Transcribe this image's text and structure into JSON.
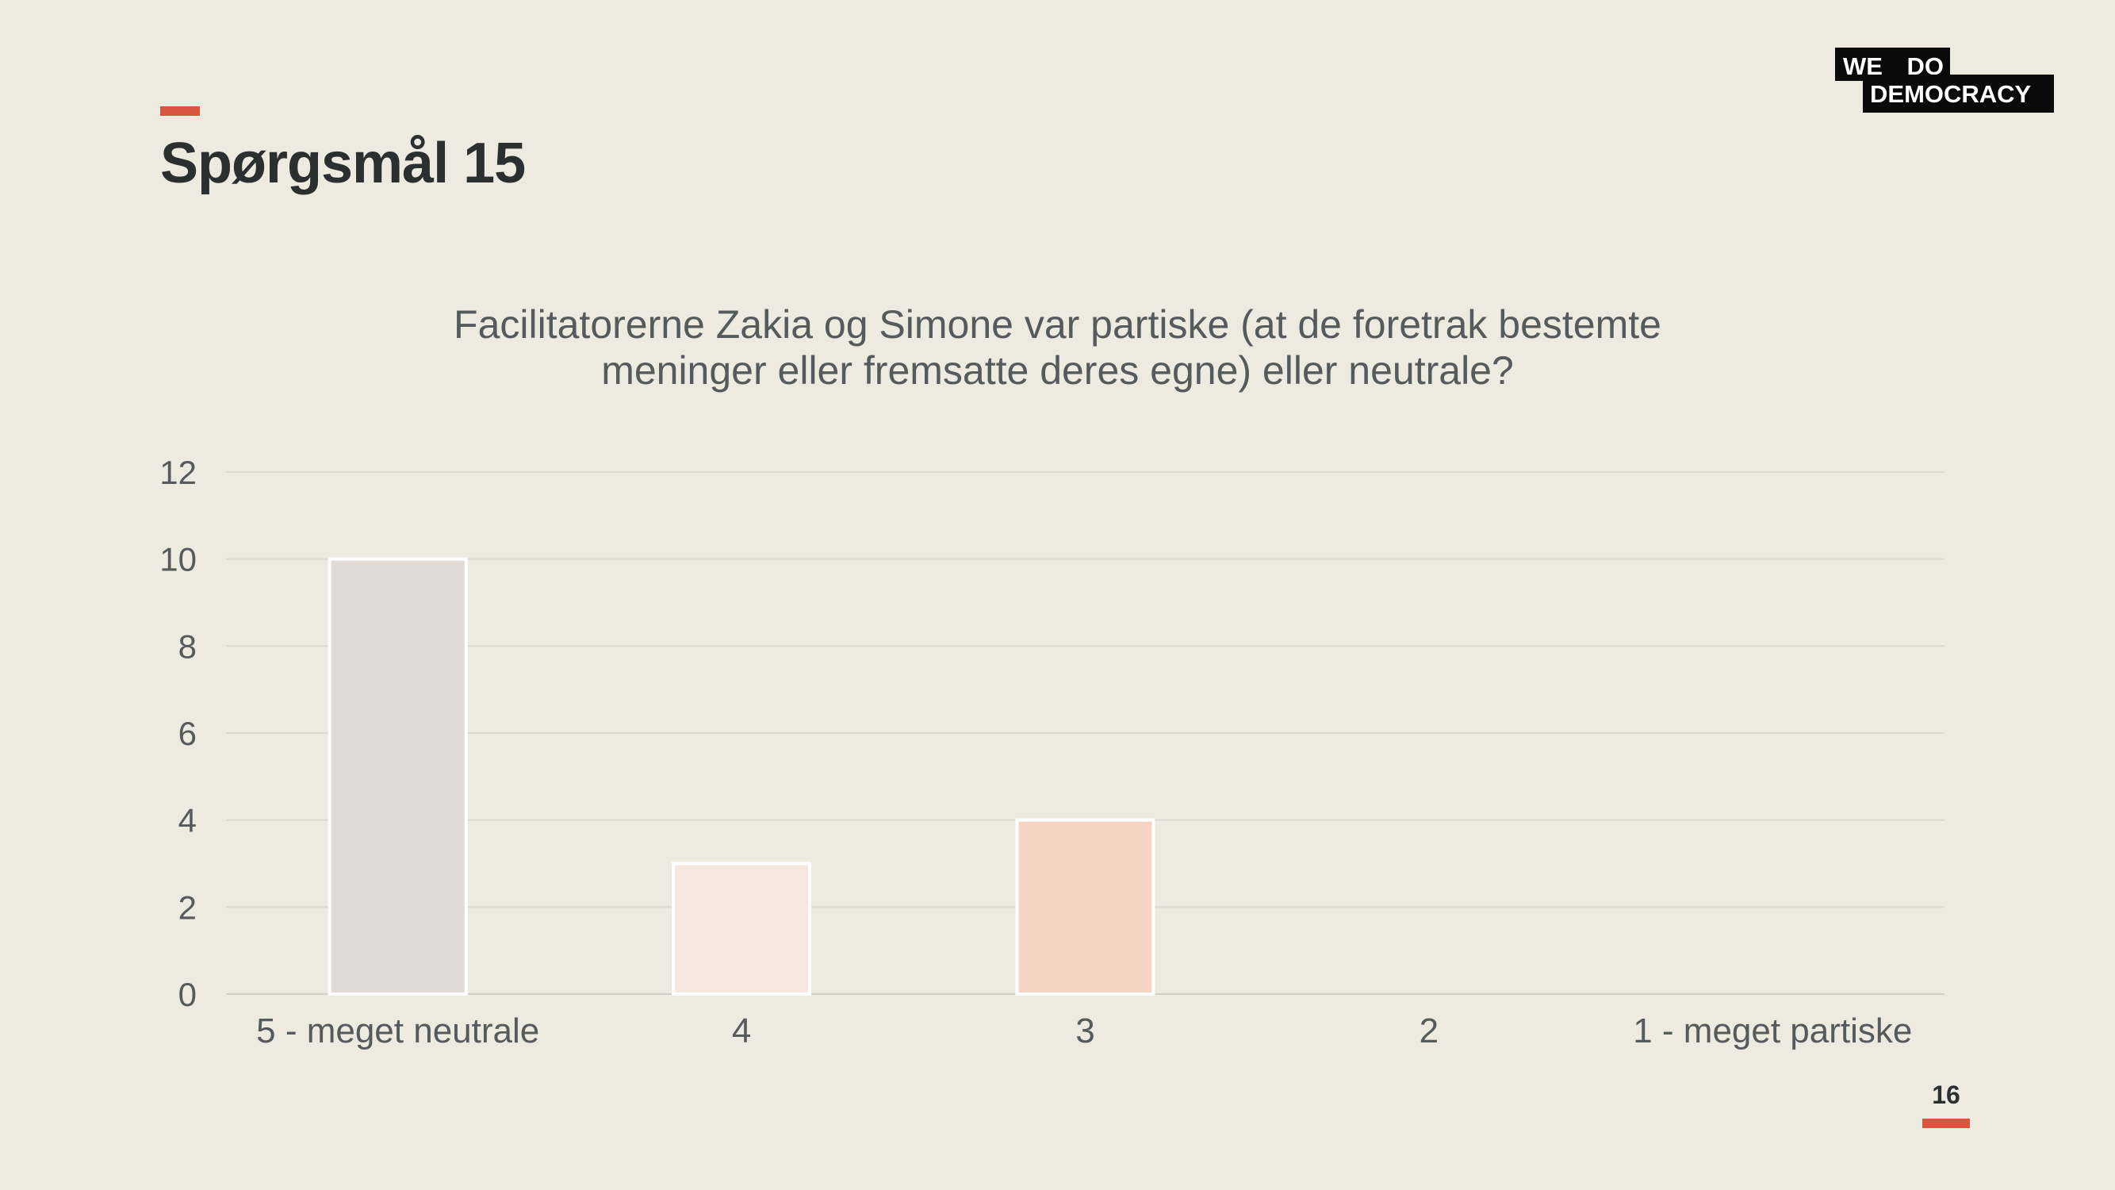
{
  "slide": {
    "title": "Spørgsmål 15",
    "page_number": "16",
    "logo": {
      "line1": "WE DO",
      "line2": "DEMOCRACY"
    },
    "colors": {
      "accent": "#d9553f",
      "background": "#edeae0",
      "text": "#2b2f2f"
    }
  },
  "chart_data": {
    "type": "bar",
    "title_lines": [
      "Facilitatorerne Zakia og Simone var partiske (at de foretrak bestemte",
      "meninger eller fremsatte deres egne) eller neutrale?"
    ],
    "categories": [
      "5 - meget neutrale",
      "4",
      "3",
      "2",
      "1 - meget partiske"
    ],
    "values": [
      10,
      3,
      4,
      0,
      0
    ],
    "bar_colors": [
      "#e2dad5",
      "#f5e7df",
      "#f5d4c4",
      "#f5d4c4",
      "#f5d4c4"
    ],
    "ylim": [
      0,
      12
    ],
    "yticks": [
      0,
      2,
      4,
      6,
      8,
      10,
      12
    ],
    "grid": true,
    "legend": "none"
  }
}
